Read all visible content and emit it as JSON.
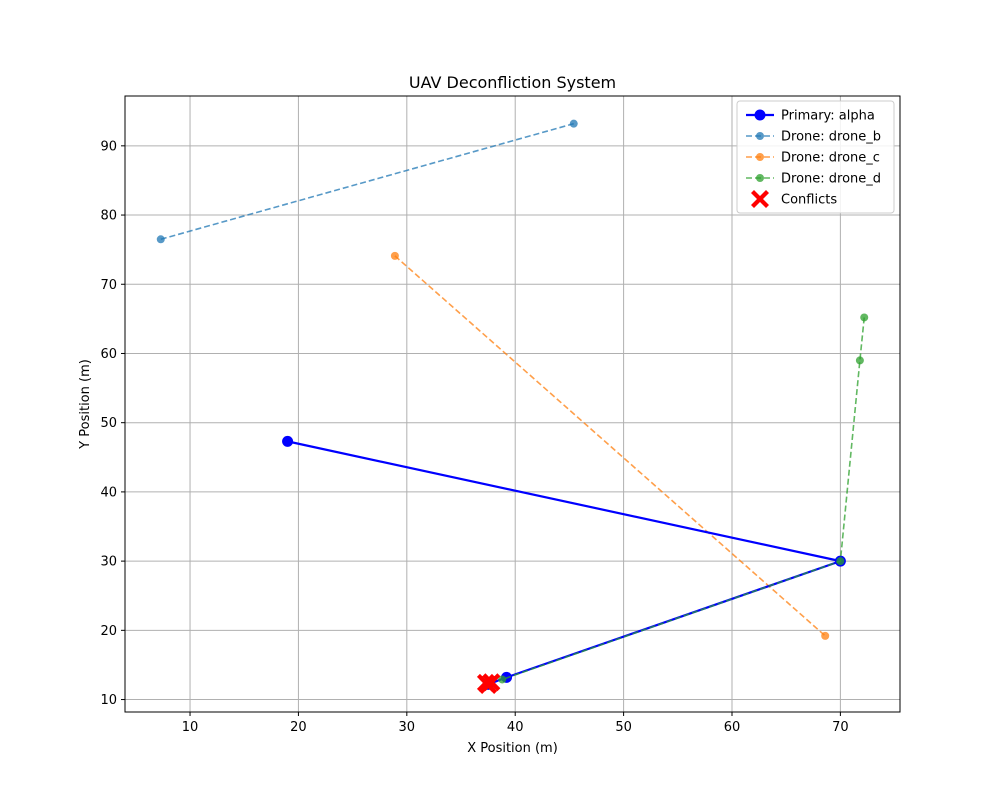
{
  "chart_data": {
    "type": "line",
    "title": "UAV Deconfliction System",
    "xlabel": "X Position (m)",
    "ylabel": "Y Position (m)",
    "xlim": [
      4,
      75.5
    ],
    "ylim": [
      8.2,
      97.2
    ],
    "xticks": [
      10,
      20,
      30,
      40,
      50,
      60,
      70
    ],
    "yticks": [
      10,
      20,
      30,
      40,
      50,
      60,
      70,
      80,
      90
    ],
    "grid": true,
    "legend_position": "top-right",
    "series": [
      {
        "name": "Primary: alpha",
        "color": "#0000ff",
        "style": "solid",
        "marker": "circle",
        "points": [
          [
            19.0,
            47.3
          ],
          [
            70.0,
            30.0
          ],
          [
            39.2,
            13.2
          ],
          [
            37.5,
            12.2
          ]
        ]
      },
      {
        "name": "Drone: drone_b",
        "color": "#1f77b4",
        "style": "dashed",
        "marker": "circle",
        "points": [
          [
            7.3,
            76.5
          ],
          [
            45.4,
            93.2
          ]
        ]
      },
      {
        "name": "Drone: drone_c",
        "color": "#ff7f0e",
        "style": "dashed",
        "marker": "circle",
        "points": [
          [
            28.9,
            74.1
          ],
          [
            68.6,
            19.2
          ]
        ]
      },
      {
        "name": "Drone: drone_d",
        "color": "#2ca02c",
        "style": "dashed",
        "marker": "circle",
        "points": [
          [
            72.2,
            65.2
          ],
          [
            71.8,
            59.0
          ],
          [
            70.0,
            30.0
          ],
          [
            38.8,
            12.9
          ]
        ]
      }
    ],
    "conflicts": {
      "name": "Conflicts",
      "color": "#ff0000",
      "marker": "X",
      "points": [
        [
          37.3,
          12.4
        ],
        [
          37.8,
          12.5
        ],
        [
          37.5,
          12.1
        ]
      ]
    }
  }
}
